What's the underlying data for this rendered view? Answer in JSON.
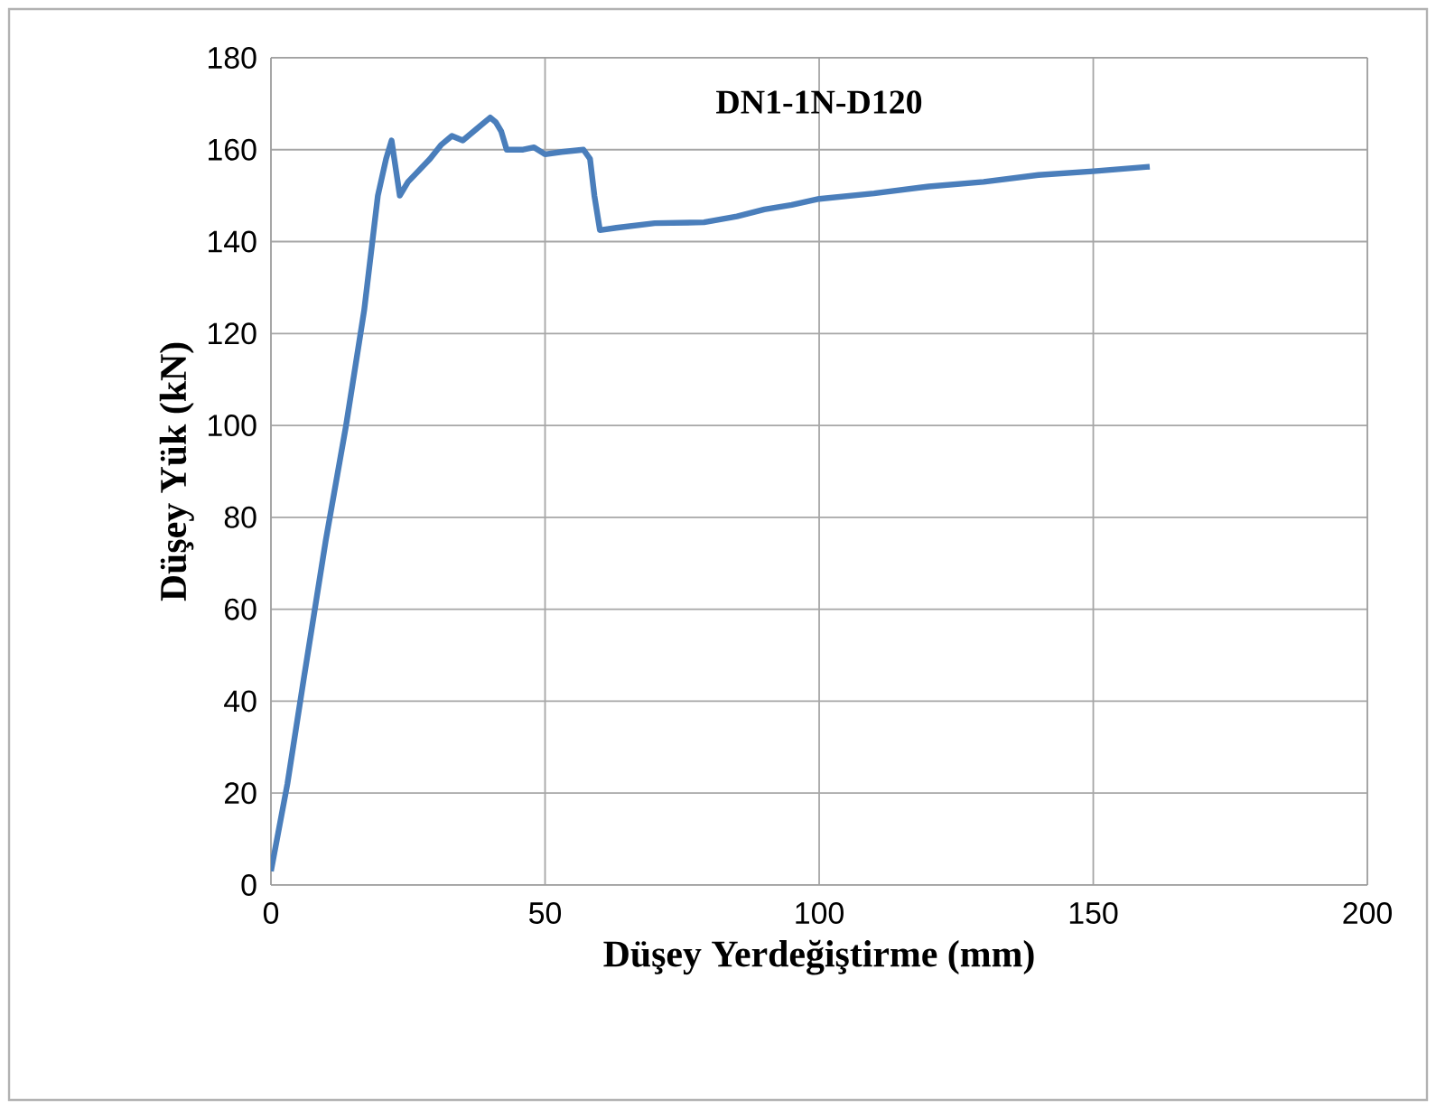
{
  "chart_data": {
    "type": "line",
    "title": "DN1-1N-D120",
    "xlabel": "Düşey Yerdeğiştirme (mm)",
    "ylabel": "Düşey Yük (kN)",
    "xlim": [
      0,
      200
    ],
    "ylim": [
      0,
      180
    ],
    "xticks": [
      0,
      50,
      100,
      150,
      200
    ],
    "yticks": [
      0,
      20,
      40,
      60,
      80,
      100,
      120,
      140,
      160,
      180
    ],
    "grid": true,
    "marker": "none",
    "line_style": "solid",
    "series": [
      {
        "color": "#4a7ebb",
        "x": [
          0,
          3,
          6,
          10,
          13.7,
          17,
          19.5,
          21,
          22,
          23.5,
          25,
          29,
          31,
          33,
          35,
          38,
          40,
          41,
          42,
          43,
          46,
          48,
          50,
          53,
          57,
          58.2,
          59,
          60,
          63,
          70,
          79,
          85,
          90,
          95,
          100,
          110,
          120,
          130,
          140,
          150,
          160.3
        ],
        "values": [
          3,
          22,
          45,
          75,
          100,
          125,
          150,
          158,
          162,
          150,
          153,
          158,
          161,
          163,
          162,
          165,
          167,
          166,
          164,
          160,
          160,
          160.5,
          159,
          159.5,
          160,
          158,
          150,
          142.5,
          143,
          144,
          144.2,
          145.5,
          147,
          148,
          149.3,
          150.5,
          152,
          153,
          154.5,
          155.3,
          156.3
        ]
      }
    ]
  }
}
